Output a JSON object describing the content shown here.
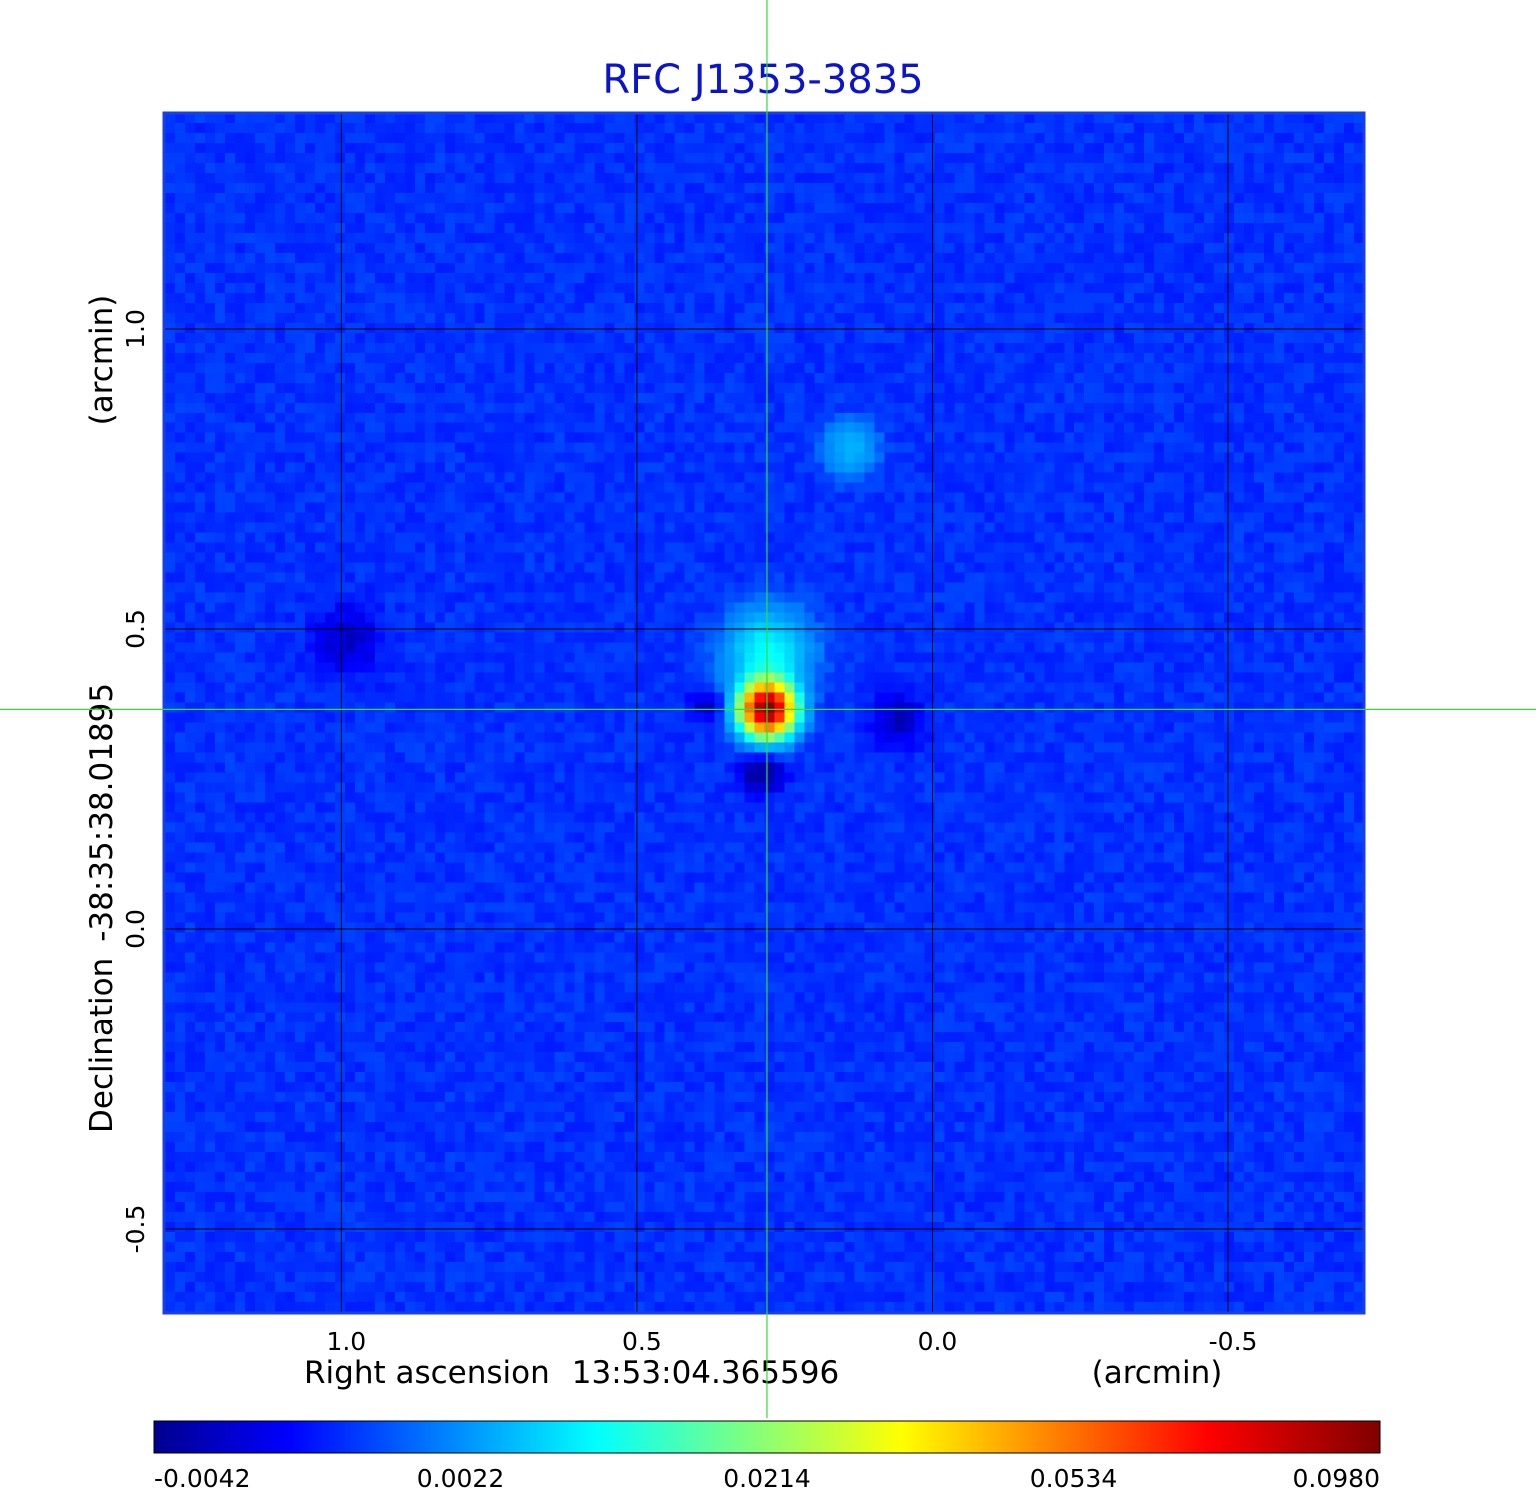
{
  "chart_data": {
    "type": "heatmap",
    "title": "RFC J1353-3835",
    "colormap": "jet",
    "colors": {
      "title": "#0a14cc",
      "frame": "#1a3fe0",
      "crosshair": "#33dd33",
      "grid": "#000000"
    },
    "x_axis": {
      "label": "Right ascension",
      "center": "13:53:04.365596",
      "unit": "(arcmin)",
      "range": [
        1.3,
        -0.73
      ],
      "ticks": [
        1.0,
        0.5,
        0.0,
        -0.5
      ],
      "tick_labels": [
        "1.0",
        "0.5",
        "0.0",
        "-0.5"
      ]
    },
    "y_axis": {
      "label": "Declination",
      "center": "-38:35:38.01895",
      "unit": "(arcmin)",
      "range": [
        -0.64,
        1.36
      ],
      "ticks": [
        1.0,
        0.5,
        0.0,
        -0.5
      ],
      "tick_labels": [
        "1.0",
        "0.5",
        "0.0",
        "-0.5"
      ]
    },
    "crosshair": {
      "x": 0.28,
      "y": 0.366
    },
    "colorbar": {
      "tick_values": [
        -0.0042,
        0.0022,
        0.0214,
        0.0534,
        0.098
      ],
      "tick_labels": [
        "-0.0042",
        "0.0022",
        "0.0214",
        "0.0534",
        "0.0980"
      ]
    },
    "grid": true,
    "features": [
      {
        "x": 0.28,
        "y": 0.366,
        "value": 0.098,
        "sigma": 0.028
      },
      {
        "x": 0.28,
        "y": 0.46,
        "value": 0.012,
        "sigma": 0.045
      },
      {
        "x": 0.14,
        "y": 0.8,
        "value": 0.006,
        "sigma": 0.03
      },
      {
        "x": 0.29,
        "y": 0.26,
        "value": -0.004,
        "sigma": 0.025
      },
      {
        "x": 0.38,
        "y": 0.37,
        "value": -0.003,
        "sigma": 0.02
      },
      {
        "x": 0.06,
        "y": 0.35,
        "value": -0.003,
        "sigma": 0.03
      },
      {
        "x": 0.99,
        "y": 0.48,
        "value": -0.0025,
        "sigma": 0.04
      }
    ]
  }
}
